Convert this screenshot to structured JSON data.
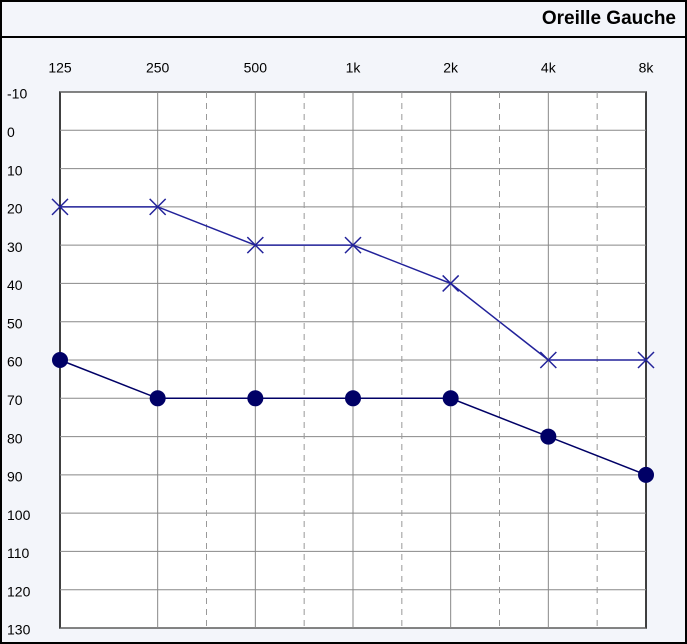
{
  "chart_data": {
    "type": "line",
    "title": "Oreille Gauche",
    "categories": [
      "125",
      "250",
      "500",
      "1k",
      "2k",
      "4k",
      "8k"
    ],
    "series": [
      {
        "color": "#22229a",
        "marker": "x",
        "values": [
          20,
          20,
          30,
          30,
          40,
          60,
          60
        ]
      },
      {
        "color": "#000066",
        "marker": "circle",
        "values": [
          60,
          70,
          70,
          70,
          70,
          80,
          90
        ]
      }
    ],
    "ylim": [
      -10,
      130
    ],
    "yticks": [
      -10,
      0,
      10,
      20,
      30,
      40,
      50,
      60,
      70,
      80,
      90,
      100,
      110,
      120,
      130
    ],
    "grid": true
  }
}
